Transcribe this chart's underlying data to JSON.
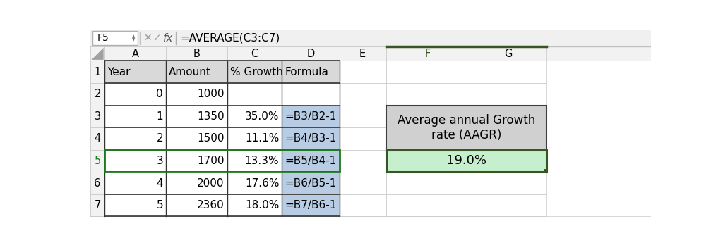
{
  "formula_bar_cell": "F5",
  "formula_bar_formula": "=AVERAGE(C3:C7)",
  "aagr_label": "Average annual Growth\nrate (AAGR)",
  "aagr_value": "19.0%",
  "bg_color": "#ffffff",
  "header_row_bg": "#d9d9d9",
  "col_header_bg": "#f2f2f2",
  "grid_color": "#c8c8c8",
  "thick_border_color": "#333333",
  "blue_cell_bg": "#b8cce4",
  "green_cell_bg": "#c6efce",
  "green_border_color": "#375623",
  "aagr_box_bg": "#d0d0d0",
  "aagr_box_border": "#404040",
  "selected_row_green": "#1f7a1f",
  "col_F_header_green": "#375623",
  "formula_bar_bg": "#f0f0f0",
  "col_A_data": [
    "0",
    "1",
    "2",
    "3",
    "4",
    "5"
  ],
  "col_B_data": [
    "1000",
    "1350",
    "1500",
    "1700",
    "2000",
    "2360"
  ],
  "col_C_data": [
    "",
    "35.0%",
    "11.1%",
    "13.3%",
    "17.6%",
    "18.0%"
  ],
  "col_D_data": [
    "",
    "=B3/B2-1",
    "=B4/B3-1",
    "=B5/B4-1",
    "=B6/B5-1",
    "=B7/B6-1"
  ],
  "row_nums": [
    "1",
    "2",
    "3",
    "4",
    "5",
    "6",
    "7"
  ],
  "col_letters": [
    "A",
    "B",
    "C",
    "D",
    "E",
    "F",
    "G"
  ],
  "headers": [
    "Year",
    "Amount",
    "% Growth",
    "Formula"
  ]
}
